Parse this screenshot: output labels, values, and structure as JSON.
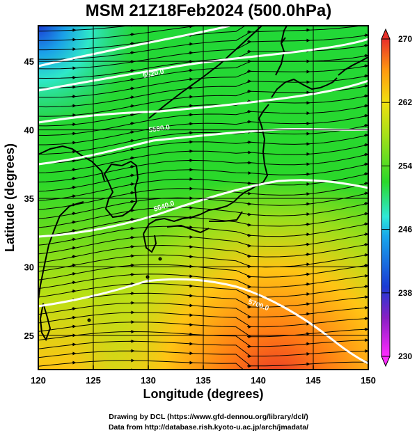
{
  "title": "MSM 21Z18Feb2024 (500.0hPa)",
  "map": {
    "xlabel": "Longitude (degrees)",
    "ylabel": "Latitude  (degrees)",
    "lon_range": [
      120,
      150
    ],
    "lat_range": [
      22.5,
      47.6
    ],
    "x_ticks": [
      "120",
      "125",
      "130",
      "135",
      "140",
      "145",
      "150"
    ],
    "y_ticks": [
      "25",
      "30",
      "35",
      "40",
      "45"
    ],
    "grid": true,
    "contour_labels": [
      "5520.0",
      "5580.0",
      "5640.0",
      "5700.0"
    ]
  },
  "colorbar": {
    "labels": [
      "270",
      "262",
      "254",
      "246",
      "238",
      "230"
    ],
    "min": 230,
    "max": 270,
    "colors": {
      "magenta": "#ff2aff",
      "purple": "#6a1fb4",
      "blue": "#1a3bd4",
      "cyan": "#2ee8f0",
      "green": "#2ad82a",
      "yellow_green": "#a8e018",
      "orange": "#ff9a10",
      "red": "#e8302a"
    }
  },
  "credits": {
    "line1": "Drawing by DCL (https://www.gfd-dennou.org/library/dcl/)",
    "line2": "Data from http://database.rish.kyoto-u.ac.jp/arch/jmadata/"
  }
}
